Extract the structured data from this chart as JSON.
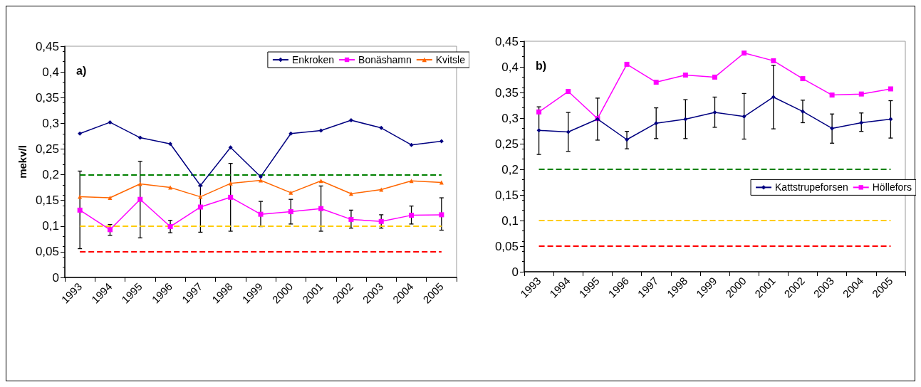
{
  "chart_data": [
    {
      "type": "line",
      "ylabel": "mekv/l",
      "annotations": [
        "a)"
      ],
      "categories": [
        "1993",
        "1994",
        "1995",
        "1996",
        "1997",
        "1998",
        "1999",
        "2000",
        "2001",
        "2002",
        "2003",
        "2004",
        "2005"
      ],
      "series": [
        {
          "name": "Enkroken",
          "color": "#000080",
          "marker": "diamond",
          "values": [
            0.28,
            0.302,
            0.272,
            0.26,
            0.179,
            0.253,
            0.196,
            0.28,
            0.286,
            0.306,
            0.291,
            0.258,
            0.265
          ]
        },
        {
          "name": "Bonäshamn",
          "color": "#ff00ff",
          "marker": "square",
          "values": [
            0.131,
            0.093,
            0.152,
            0.099,
            0.137,
            0.156,
            0.123,
            0.128,
            0.134,
            0.113,
            0.109,
            0.121,
            0.122
          ],
          "errors": [
            [
              0.056,
              0.207
            ],
            [
              0.082,
              0.103
            ],
            [
              0.077,
              0.226
            ],
            [
              0.087,
              0.111
            ],
            [
              0.088,
              0.178
            ],
            [
              0.09,
              0.222
            ],
            [
              0.099,
              0.148
            ],
            [
              0.104,
              0.152
            ],
            [
              0.09,
              0.178
            ],
            [
              0.096,
              0.131
            ],
            [
              0.096,
              0.122
            ],
            [
              0.104,
              0.139
            ],
            [
              0.092,
              0.155
            ]
          ]
        },
        {
          "name": "Kvitsle",
          "color": "#ff6600",
          "marker": "triangle",
          "values": [
            0.157,
            0.155,
            0.182,
            0.175,
            0.157,
            0.183,
            0.189,
            0.165,
            0.188,
            0.163,
            0.171,
            0.188,
            0.185
          ]
        }
      ],
      "ylim": [
        0,
        0.45
      ],
      "yticks": [
        0,
        {
          "value": 0.05,
          "label": "0,05"
        },
        {
          "value": 0.1,
          "label": "0,1"
        },
        {
          "value": 0.15,
          "label": "0,15"
        },
        {
          "value": 0.2,
          "label": "0,2"
        },
        {
          "value": 0.25,
          "label": "0,25"
        },
        {
          "value": 0.3,
          "label": "0,3"
        },
        {
          "value": 0.35,
          "label": "0,35"
        },
        {
          "value": 0.4,
          "label": "0,4"
        },
        {
          "value": 0.45,
          "label": "0,45"
        }
      ],
      "ref_lines": [
        {
          "axis": "y",
          "value": 0.2,
          "color": "#008000",
          "line_style": "dashed"
        },
        {
          "axis": "y",
          "value": 0.1,
          "color": "#ffcc00",
          "line_style": "dashed"
        },
        {
          "axis": "y",
          "value": 0.05,
          "color": "#ff0000",
          "line_style": "dashed"
        }
      ],
      "grid": false,
      "legend": "top right"
    },
    {
      "type": "line",
      "annotations": [
        "b)"
      ],
      "categories": [
        "1993",
        "1994",
        "1995",
        "1996",
        "1997",
        "1998",
        "1999",
        "2000",
        "2001",
        "2002",
        "2003",
        "2004",
        "2005"
      ],
      "series": [
        {
          "name": "Kattstrupeforsen",
          "color": "#000080",
          "marker": "diamond",
          "values": [
            0.276,
            0.273,
            0.298,
            0.258,
            0.29,
            0.298,
            0.311,
            0.303,
            0.341,
            0.313,
            0.28,
            0.291,
            0.298
          ],
          "errors": [
            [
              0.229,
              0.322
            ],
            [
              0.235,
              0.311
            ],
            [
              0.257,
              0.339
            ],
            [
              0.24,
              0.274
            ],
            [
              0.26,
              0.32
            ],
            [
              0.26,
              0.336
            ],
            [
              0.282,
              0.341
            ],
            [
              0.259,
              0.348
            ],
            [
              0.279,
              0.403
            ],
            [
              0.291,
              0.335
            ],
            [
              0.251,
              0.308
            ],
            [
              0.274,
              0.31
            ],
            [
              0.261,
              0.334
            ]
          ]
        },
        {
          "name": "Höllefors",
          "color": "#ff00ff",
          "marker": "square",
          "values": [
            0.312,
            0.352,
            0.299,
            0.405,
            0.37,
            0.384,
            0.38,
            0.427,
            0.412,
            0.377,
            0.345,
            0.347,
            0.357
          ]
        }
      ],
      "ylim": [
        0,
        0.45
      ],
      "yticks": [
        0,
        {
          "value": 0.05,
          "label": "0,05"
        },
        {
          "value": 0.1,
          "label": "0,1"
        },
        {
          "value": 0.15,
          "label": "0,15"
        },
        {
          "value": 0.2,
          "label": "0,2"
        },
        {
          "value": 0.25,
          "label": "0,25"
        },
        {
          "value": 0.3,
          "label": "0,3"
        },
        {
          "value": 0.35,
          "label": "0,35"
        },
        {
          "value": 0.4,
          "label": "0,4"
        },
        {
          "value": 0.45,
          "label": "0,45"
        }
      ],
      "ref_lines": [
        {
          "axis": "y",
          "value": 0.2,
          "color": "#008000",
          "line_style": "dashed"
        },
        {
          "axis": "y",
          "value": 0.1,
          "color": "#ffcc00",
          "line_style": "dashed"
        },
        {
          "axis": "y",
          "value": 0.05,
          "color": "#ff0000",
          "line_style": "dashed"
        }
      ],
      "grid": false,
      "legend": "right"
    }
  ]
}
